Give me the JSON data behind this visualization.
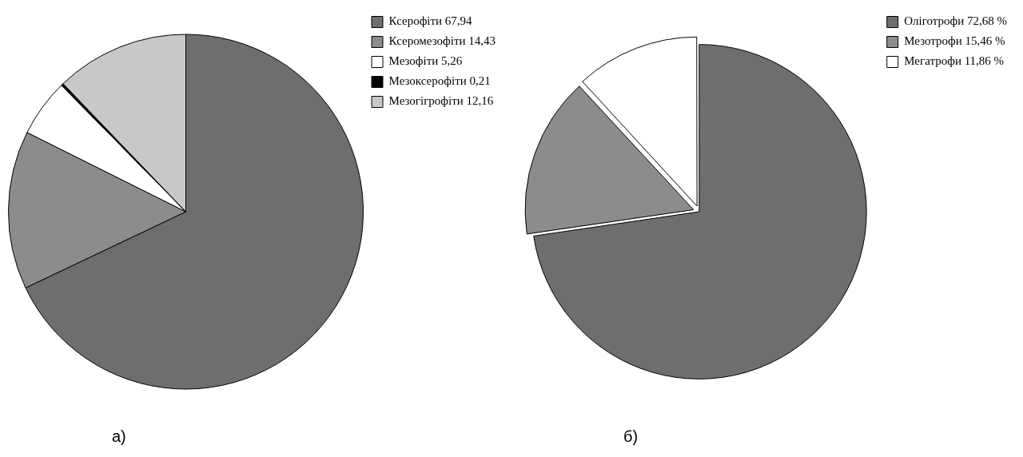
{
  "chart_data": [
    {
      "type": "pie",
      "categories": [
        "Ксерофіти 67,94",
        "Ксеромезофіти 14,43",
        "Мезофіти 5,26",
        "Мезоксерофіти 0,21",
        "Мезогігрофіти 12,16"
      ],
      "values": [
        67.94,
        14.43,
        5.26,
        0.21,
        12.16
      ],
      "colors": [
        "#6e6e6e",
        "#8c8c8c",
        "#ffffff",
        "#000000",
        "#c8c8c8"
      ],
      "legend": "top right",
      "annotations": [
        "а)"
      ]
    },
    {
      "type": "pie",
      "categories": [
        "Оліготрофи 72,68 %",
        "Мезотрофи 15,46 %",
        "Мегатрофи 11,86 %"
      ],
      "values": [
        72.68,
        15.46,
        11.86
      ],
      "colors": [
        "#6e6e6e",
        "#8c8c8c",
        "#ffffff"
      ],
      "legend": "top right",
      "annotations": [
        "б)"
      ]
    }
  ]
}
